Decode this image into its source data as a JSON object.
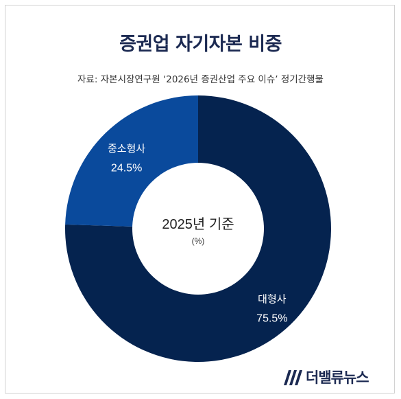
{
  "title": "증권업 자기자본 비중",
  "source": "자료: 자본시장연구원 ‘2026년 증권산업 주요 이슈’ 정기간행물",
  "brand": "더밸류뉴스",
  "colors": {
    "large": "#05234f",
    "small": "#0a4a9c",
    "title": "#1c2a52"
  },
  "chart_data": {
    "type": "pie",
    "variant": "donut",
    "title": "증권업 자기자본 비중",
    "center_label": "2025년 기준",
    "center_sublabel": "(%)",
    "slices": [
      {
        "label": "대형사",
        "value": 75.5,
        "display": "75.5%",
        "color": "#05234f"
      },
      {
        "label": "중소형사",
        "value": 24.5,
        "display": "24.5%",
        "color": "#0a4a9c"
      }
    ],
    "start": "12 o'clock",
    "direction": "clockwise"
  }
}
